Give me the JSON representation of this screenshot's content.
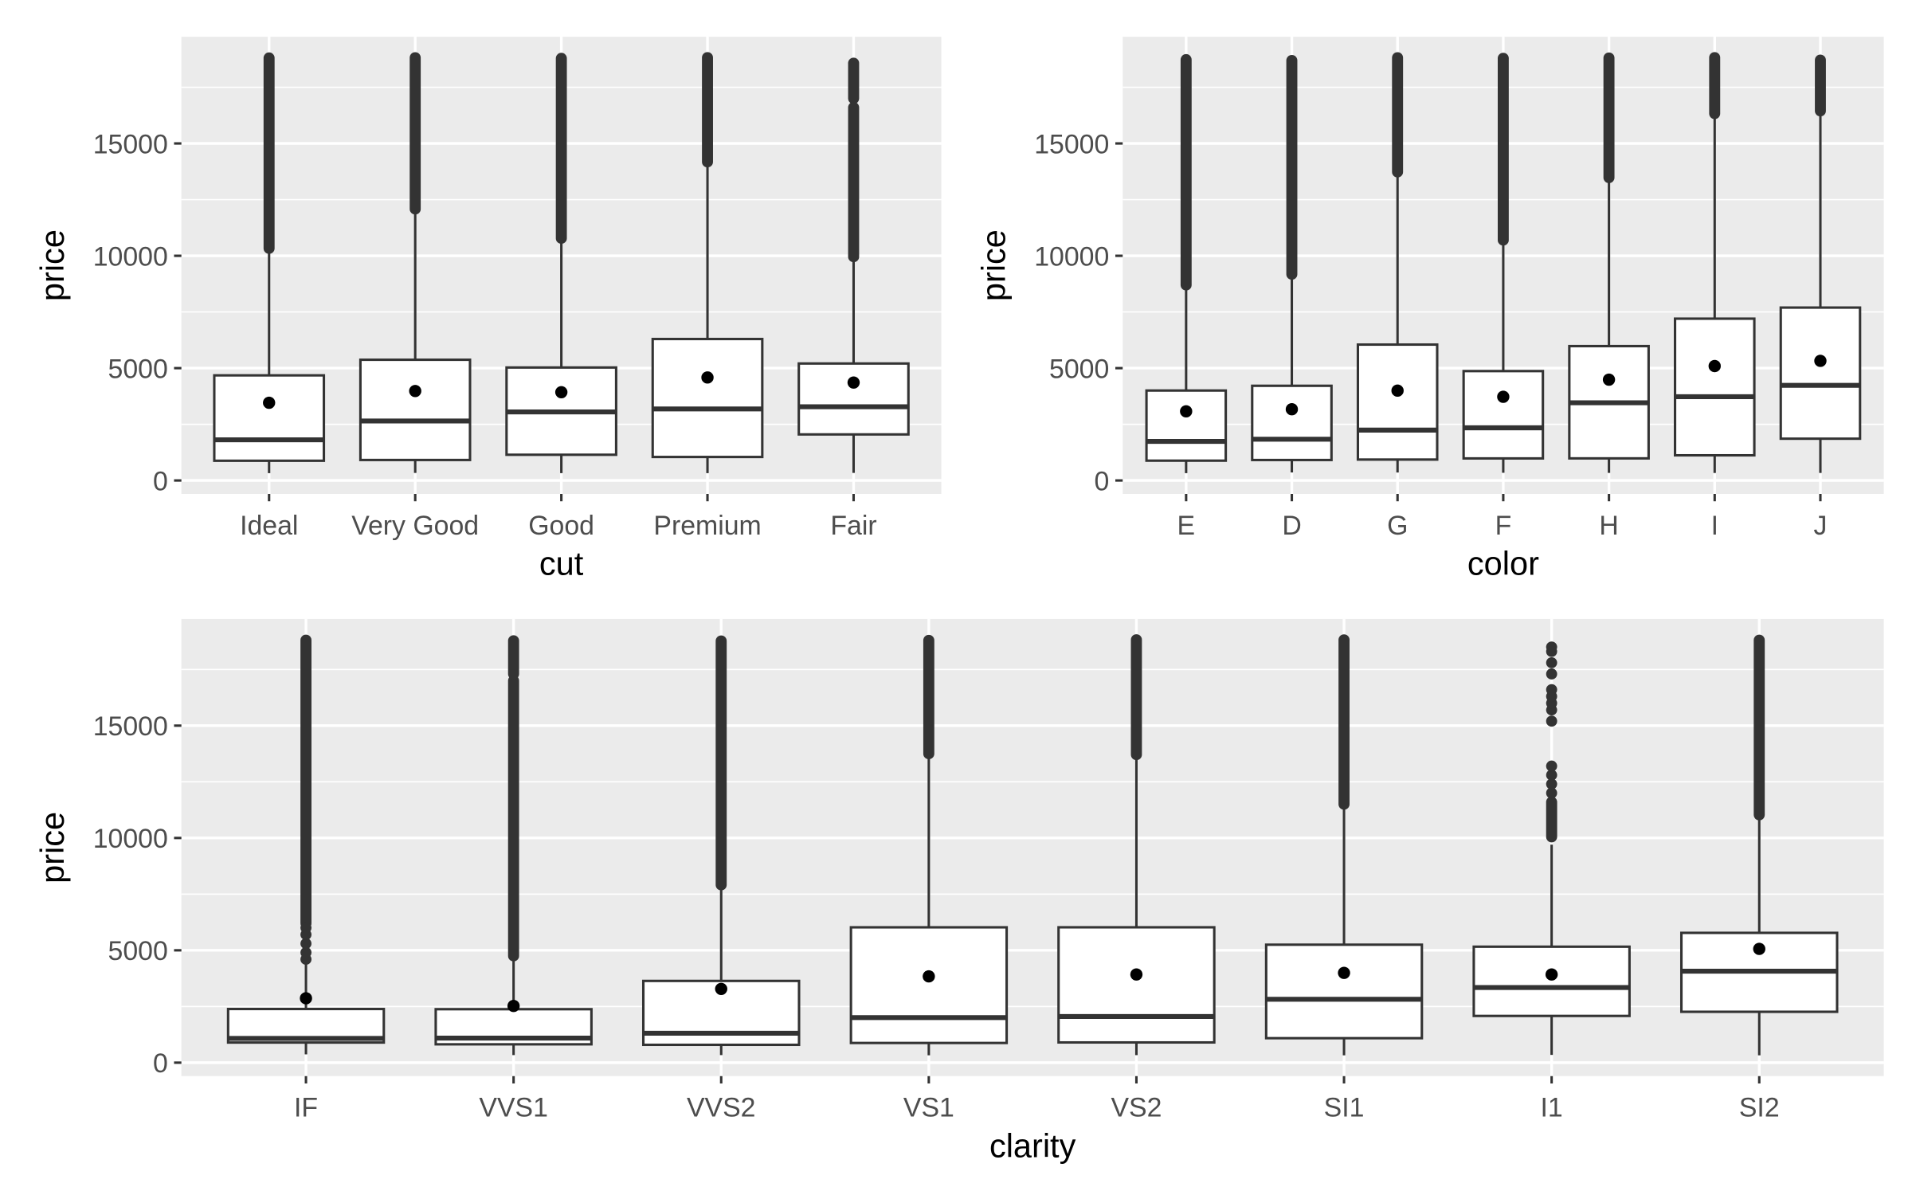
{
  "chart_data": [
    {
      "type": "box",
      "xlabel": "cut",
      "ylabel": "price",
      "ylim": [
        -599,
        19748
      ],
      "yticks": [
        0,
        5000,
        10000,
        15000
      ],
      "ytick_labels": [
        "0",
        "5000",
        "10000",
        "15000"
      ],
      "categories": [
        "Ideal",
        "Very Good",
        "Good",
        "Premium",
        "Fair"
      ],
      "boxes": [
        {
          "min": 326,
          "q1": 878,
          "median": 1810,
          "q3": 4678,
          "upper": 10300,
          "mean": 3458,
          "outlier_range": [
            [
              10330,
              18806
            ]
          ]
        },
        {
          "min": 336,
          "q1": 912,
          "median": 2648,
          "q3": 5373,
          "upper": 12000,
          "mean": 3982,
          "outlier_range": [
            [
              12080,
              18818
            ]
          ]
        },
        {
          "min": 327,
          "q1": 1145,
          "median": 3050,
          "q3": 5028,
          "upper": 10700,
          "mean": 3929,
          "outlier_range": [
            [
              10780,
              18788
            ]
          ]
        },
        {
          "min": 326,
          "q1": 1046,
          "median": 3185,
          "q3": 6296,
          "upper": 14100,
          "mean": 4584,
          "outlier_range": [
            [
              14180,
              18823
            ]
          ]
        },
        {
          "min": 337,
          "q1": 2050,
          "median": 3282,
          "q3": 5206,
          "upper": 9900,
          "mean": 4359,
          "outlier_range": [
            [
              9960,
              16600
            ],
            [
              17000,
              18574
            ]
          ]
        }
      ]
    },
    {
      "type": "box",
      "xlabel": "color",
      "ylabel": "price",
      "ylim": [
        -599,
        19748
      ],
      "yticks": [
        0,
        5000,
        10000,
        15000
      ],
      "ytick_labels": [
        "0",
        "5000",
        "10000",
        "15000"
      ],
      "categories": [
        "E",
        "D",
        "G",
        "F",
        "H",
        "I",
        "J"
      ],
      "boxes": [
        {
          "min": 326,
          "q1": 882,
          "median": 1739,
          "q3": 4003,
          "upper": 8600,
          "mean": 3077,
          "outlier_range": [
            [
              8700,
              18731
            ]
          ]
        },
        {
          "min": 357,
          "q1": 911,
          "median": 1838,
          "q3": 4214,
          "upper": 9100,
          "mean": 3170,
          "outlier_range": [
            [
              9180,
              18693
            ]
          ]
        },
        {
          "min": 354,
          "q1": 931,
          "median": 2242,
          "q3": 6048,
          "upper": 13700,
          "mean": 3999,
          "outlier_range": [
            [
              13730,
              18818
            ]
          ]
        },
        {
          "min": 342,
          "q1": 982,
          "median": 2344,
          "q3": 4868,
          "upper": 10600,
          "mean": 3725,
          "outlier_range": [
            [
              10700,
              18791
            ]
          ]
        },
        {
          "min": 337,
          "q1": 984,
          "median": 3460,
          "q3": 5980,
          "upper": 13400,
          "mean": 4487,
          "outlier_range": [
            [
              13480,
              18803
            ]
          ]
        },
        {
          "min": 334,
          "q1": 1120,
          "median": 3730,
          "q3": 7202,
          "upper": 16300,
          "mean": 5092,
          "outlier_range": [
            [
              16330,
              18823
            ]
          ]
        },
        {
          "min": 335,
          "q1": 1860,
          "median": 4234,
          "q3": 7695,
          "upper": 16400,
          "mean": 5324,
          "outlier_range": [
            [
              16450,
              18710
            ]
          ]
        }
      ]
    },
    {
      "type": "box",
      "xlabel": "clarity",
      "ylabel": "price",
      "ylim": [
        -599,
        19748
      ],
      "yticks": [
        0,
        5000,
        10000,
        15000
      ],
      "ytick_labels": [
        "0",
        "5000",
        "10000",
        "15000"
      ],
      "categories": [
        "IF",
        "VVS1",
        "VVS2",
        "VS1",
        "VS2",
        "SI1",
        "I1",
        "SI2"
      ],
      "boxes": [
        {
          "min": 369,
          "q1": 895,
          "median": 1080,
          "q3": 2388,
          "upper": 4400,
          "mean": 2865,
          "outlier_range": [
            [
              6200,
              18806
            ]
          ],
          "outliers": [
            4600,
            4900,
            5300,
            5700,
            6000
          ]
        },
        {
          "min": 336,
          "q1": 816,
          "median": 1093,
          "q3": 2379,
          "upper": 4700,
          "mean": 2523,
          "outlier_range": [
            [
              4750,
              17000
            ],
            [
              17300,
              18777
            ]
          ]
        },
        {
          "min": 336,
          "q1": 794,
          "median": 1311,
          "q3": 3638,
          "upper": 7800,
          "mean": 3284,
          "outlier_range": [
            [
              7910,
              18768
            ]
          ]
        },
        {
          "min": 327,
          "q1": 876,
          "median": 2005,
          "q3": 6023,
          "upper": 13700,
          "mean": 3839,
          "outlier_range": [
            [
              13750,
              18795
            ]
          ]
        },
        {
          "min": 334,
          "q1": 900,
          "median": 2054,
          "q3": 6024,
          "upper": 13700,
          "mean": 3925,
          "outlier_range": [
            [
              13710,
              18823
            ]
          ]
        },
        {
          "min": 326,
          "q1": 1089,
          "median": 2822,
          "q3": 5250,
          "upper": 11400,
          "mean": 3996,
          "outlier_range": [
            [
              11500,
              18818
            ]
          ]
        },
        {
          "min": 345,
          "q1": 2080,
          "median": 3344,
          "q3": 5161,
          "upper": 9700,
          "mean": 3924,
          "outlier_range": [
            [
              10050,
              11600
            ]
          ],
          "outliers": [
            12000,
            12400,
            12800,
            13200,
            15200,
            15700,
            16000,
            16300,
            16600,
            17300,
            17800,
            18300,
            18500
          ]
        },
        {
          "min": 326,
          "q1": 2264,
          "median": 4072,
          "q3": 5777,
          "upper": 10900,
          "mean": 5063,
          "outlier_range": [
            [
              11030,
              18804
            ]
          ]
        }
      ]
    }
  ]
}
